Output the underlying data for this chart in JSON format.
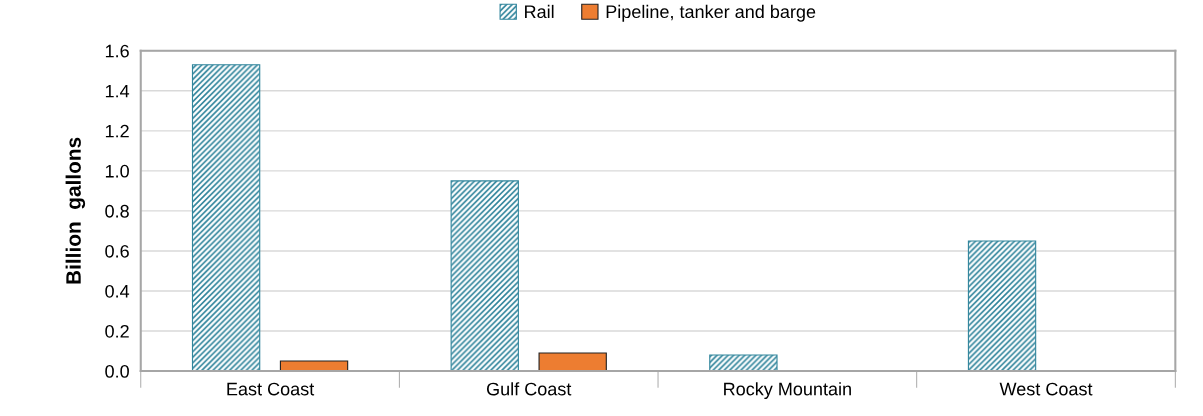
{
  "chart_data": {
    "type": "bar",
    "ylabel": "Billion  gallons",
    "categories": [
      "East Coast",
      "Gulf Coast",
      "Rocky Mountain",
      "West Coast"
    ],
    "series": [
      {
        "name": "Rail",
        "color": "#31859c",
        "values": [
          1.53,
          0.95,
          0.08,
          0.65
        ]
      },
      {
        "name": "Pipeline, tanker and barge",
        "color": "#ed7d31",
        "values": [
          0.05,
          0.09,
          null,
          null
        ]
      }
    ],
    "ylim": [
      0,
      1.6
    ],
    "yticks": [
      {
        "value": 0,
        "label": "0.0"
      },
      0.2,
      0.4,
      0.6,
      0.8,
      {
        "value": 1,
        "label": "1.0"
      },
      1.2,
      1.4,
      1.6
    ],
    "grid": "y",
    "legend": "top"
  }
}
